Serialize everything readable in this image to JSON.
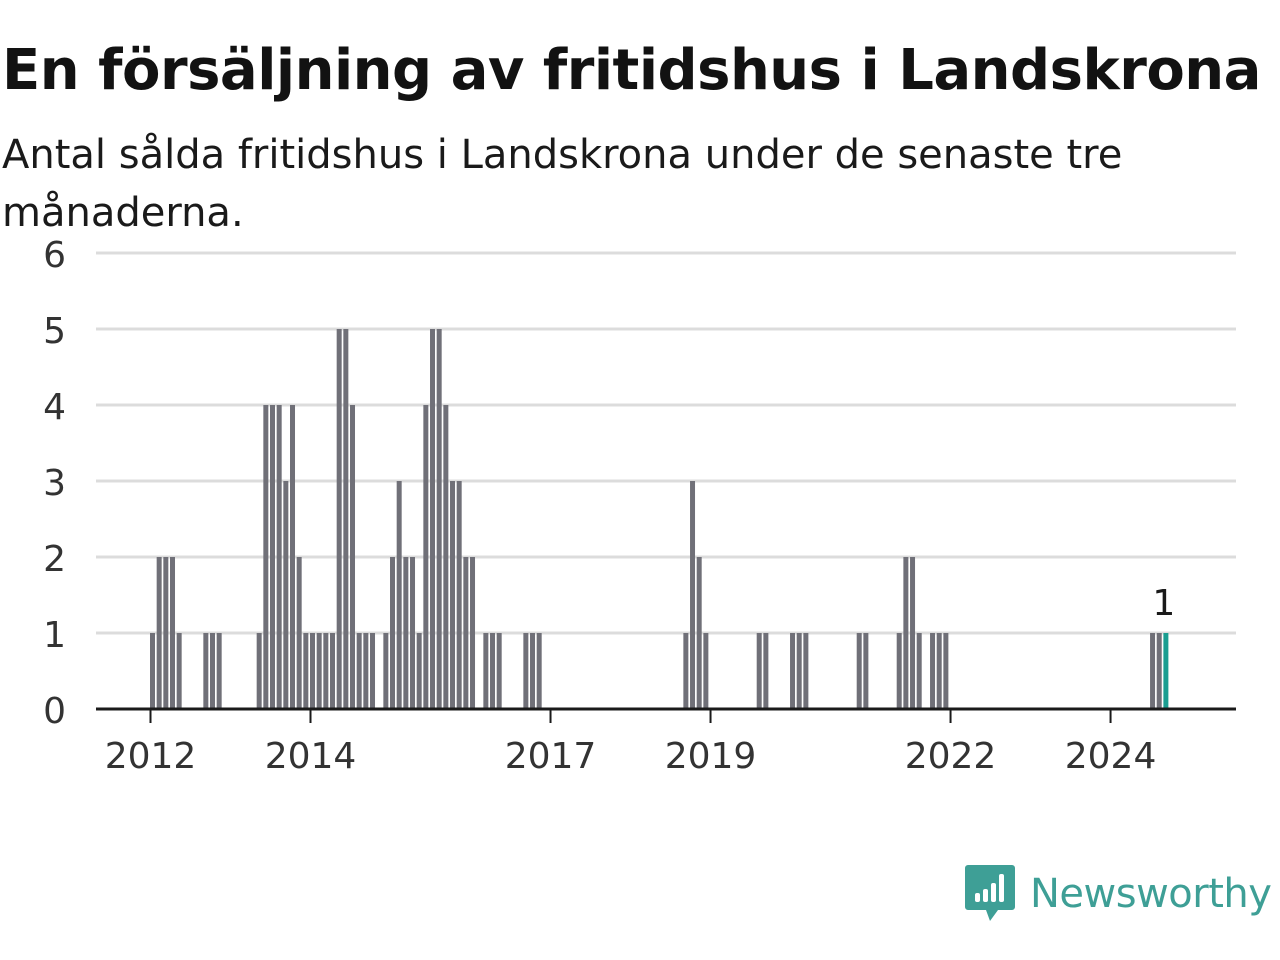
{
  "title": "En försäljning av fritidshus i Landskrona",
  "subtitle": "Antal sålda fritidshus i Landskrona under de senaste tre månaderna.",
  "brand": {
    "name": "Newsworthy",
    "icon": "newsworthy-logo-icon"
  },
  "colors": {
    "bar": "#707078",
    "highlight": "#1a9e91",
    "grid": "#dcdcdc",
    "axis": "#1a1a1a",
    "brand": "#3e9f96"
  },
  "chart_data": {
    "type": "bar",
    "x_unit": "month",
    "x_range": [
      "2011-01",
      "2025-05"
    ],
    "ylim": [
      0,
      6
    ],
    "yticks": [
      0,
      1,
      2,
      3,
      4,
      5,
      6
    ],
    "xticks": [
      {
        "date": "2012-01",
        "label": "2012"
      },
      {
        "date": "2014-01",
        "label": "2014"
      },
      {
        "date": "2017-01",
        "label": "2017"
      },
      {
        "date": "2019-01",
        "label": "2019"
      },
      {
        "date": "2022-01",
        "label": "2022"
      },
      {
        "date": "2024-01",
        "label": "2024"
      }
    ],
    "grid": true,
    "series": [
      {
        "points": [
          {
            "x": "2012-01",
            "y": 1
          },
          {
            "x": "2012-02",
            "y": 2
          },
          {
            "x": "2012-03",
            "y": 2
          },
          {
            "x": "2012-04",
            "y": 2
          },
          {
            "x": "2012-05",
            "y": 1
          },
          {
            "x": "2012-09",
            "y": 1
          },
          {
            "x": "2012-10",
            "y": 1
          },
          {
            "x": "2012-11",
            "y": 1
          },
          {
            "x": "2013-05",
            "y": 1
          },
          {
            "x": "2013-06",
            "y": 4
          },
          {
            "x": "2013-07",
            "y": 4
          },
          {
            "x": "2013-08",
            "y": 4
          },
          {
            "x": "2013-09",
            "y": 3
          },
          {
            "x": "2013-10",
            "y": 4
          },
          {
            "x": "2013-11",
            "y": 2
          },
          {
            "x": "2013-12",
            "y": 1
          },
          {
            "x": "2014-01",
            "y": 1
          },
          {
            "x": "2014-02",
            "y": 1
          },
          {
            "x": "2014-03",
            "y": 1
          },
          {
            "x": "2014-04",
            "y": 1
          },
          {
            "x": "2014-05",
            "y": 5
          },
          {
            "x": "2014-06",
            "y": 5
          },
          {
            "x": "2014-07",
            "y": 4
          },
          {
            "x": "2014-08",
            "y": 1
          },
          {
            "x": "2014-09",
            "y": 1
          },
          {
            "x": "2014-10",
            "y": 1
          },
          {
            "x": "2014-12",
            "y": 1
          },
          {
            "x": "2015-01",
            "y": 2
          },
          {
            "x": "2015-02",
            "y": 3
          },
          {
            "x": "2015-03",
            "y": 2
          },
          {
            "x": "2015-04",
            "y": 2
          },
          {
            "x": "2015-05",
            "y": 1
          },
          {
            "x": "2015-06",
            "y": 4
          },
          {
            "x": "2015-07",
            "y": 5
          },
          {
            "x": "2015-08",
            "y": 5
          },
          {
            "x": "2015-09",
            "y": 4
          },
          {
            "x": "2015-10",
            "y": 3
          },
          {
            "x": "2015-11",
            "y": 3
          },
          {
            "x": "2015-12",
            "y": 2
          },
          {
            "x": "2016-01",
            "y": 2
          },
          {
            "x": "2016-03",
            "y": 1
          },
          {
            "x": "2016-04",
            "y": 1
          },
          {
            "x": "2016-05",
            "y": 1
          },
          {
            "x": "2016-09",
            "y": 1
          },
          {
            "x": "2016-10",
            "y": 1
          },
          {
            "x": "2016-11",
            "y": 1
          },
          {
            "x": "2018-09",
            "y": 1
          },
          {
            "x": "2018-10",
            "y": 3
          },
          {
            "x": "2018-11",
            "y": 2
          },
          {
            "x": "2018-12",
            "y": 1
          },
          {
            "x": "2019-08",
            "y": 1
          },
          {
            "x": "2019-09",
            "y": 1
          },
          {
            "x": "2020-01",
            "y": 1
          },
          {
            "x": "2020-02",
            "y": 1
          },
          {
            "x": "2020-03",
            "y": 1
          },
          {
            "x": "2020-11",
            "y": 1
          },
          {
            "x": "2020-12",
            "y": 1
          },
          {
            "x": "2021-05",
            "y": 1
          },
          {
            "x": "2021-06",
            "y": 2
          },
          {
            "x": "2021-07",
            "y": 2
          },
          {
            "x": "2021-08",
            "y": 1
          },
          {
            "x": "2021-10",
            "y": 1
          },
          {
            "x": "2021-11",
            "y": 1
          },
          {
            "x": "2021-12",
            "y": 1
          },
          {
            "x": "2024-07",
            "y": 1
          },
          {
            "x": "2024-08",
            "y": 1
          },
          {
            "x": "2024-09",
            "y": 1,
            "highlight": true,
            "label": "1"
          }
        ]
      }
    ]
  }
}
